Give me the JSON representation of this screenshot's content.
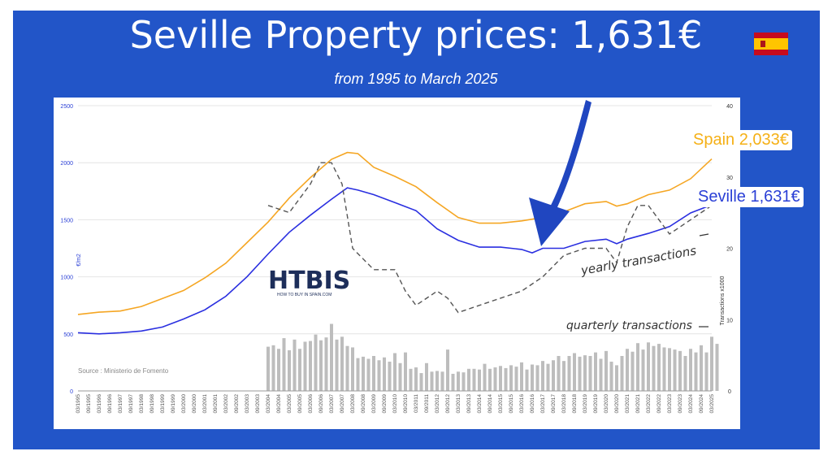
{
  "header": {
    "title": "Seville Property prices: 1,631€",
    "subtitle": "from 1995 to March 2025",
    "flag_colors": {
      "red": "#c60b1e",
      "yellow": "#ffc400"
    }
  },
  "labels": {
    "spain": "Spain 2,033€",
    "seville": "Seville 1,631€"
  },
  "logo": {
    "text": "HTBIS",
    "tagline": "HOW TO BUY IN SPAIN.COM"
  },
  "colors": {
    "frame": "#2255c8",
    "spain": "#f5a623",
    "seville": "#2a2fe0",
    "yearly": "#555555",
    "quarterly": "#bdbdbd",
    "arrow": "#2046c0"
  },
  "chart_data": {
    "type": "line",
    "xlabel": "",
    "ylabel": "€/m2",
    "ylabel_right": "Transactions x1000",
    "ylim": [
      0,
      2500
    ],
    "ylim_right": [
      0,
      40
    ],
    "yticks": [
      0,
      500,
      1000,
      1500,
      2000,
      2500
    ],
    "yticks_right": [
      0,
      10,
      20,
      30,
      40
    ],
    "grid": true,
    "source": "Source : Ministerio de Fomento",
    "x_start": "1995-Q1",
    "x_end": "2025-Q1",
    "x_tick_labels": [
      "03/1995",
      "09/1995",
      "03/1996",
      "09/1996",
      "03/1997",
      "09/1997",
      "03/1998",
      "09/1998",
      "03/1999",
      "09/1999",
      "03/2000",
      "09/2000",
      "03/2001",
      "09/2001",
      "03/2002",
      "09/2002",
      "03/2003",
      "09/2003",
      "03/2004",
      "09/2004",
      "03/2005",
      "09/2005",
      "03/2006",
      "09/2006",
      "03/2007",
      "09/2007",
      "03/2008",
      "09/2008",
      "03/2009",
      "09/2009",
      "03/2010",
      "09/2010",
      "03/2011",
      "09/2011",
      "03/2012",
      "09/2012",
      "03/2013",
      "09/2013",
      "03/2014",
      "09/2014",
      "03/2015",
      "09/2015",
      "03/2016",
      "09/2016",
      "03/2017",
      "09/2017",
      "03/2018",
      "09/2018",
      "03/2019",
      "09/2019",
      "03/2020",
      "09/2020",
      "03/2021",
      "09/2021",
      "03/2022",
      "09/2022",
      "03/2023",
      "09/2023",
      "03/2024",
      "09/2024",
      "03/2025"
    ],
    "series": [
      {
        "name": "Spain 2,033€",
        "axis": "left",
        "style": "line",
        "points": [
          [
            "1995-Q1",
            670
          ],
          [
            "1996-Q1",
            690
          ],
          [
            "1997-Q1",
            700
          ],
          [
            "1998-Q1",
            740
          ],
          [
            "1999-Q1",
            810
          ],
          [
            "2000-Q1",
            880
          ],
          [
            "2001-Q1",
            990
          ],
          [
            "2002-Q1",
            1120
          ],
          [
            "2003-Q1",
            1300
          ],
          [
            "2004-Q1",
            1480
          ],
          [
            "2005-Q1",
            1690
          ],
          [
            "2006-Q1",
            1870
          ],
          [
            "2007-Q1",
            2030
          ],
          [
            "2007-Q4",
            2090
          ],
          [
            "2008-Q2",
            2080
          ],
          [
            "2009-Q1",
            1960
          ],
          [
            "2010-Q1",
            1880
          ],
          [
            "2011-Q1",
            1790
          ],
          [
            "2012-Q1",
            1650
          ],
          [
            "2013-Q1",
            1520
          ],
          [
            "2014-Q1",
            1470
          ],
          [
            "2015-Q1",
            1470
          ],
          [
            "2016-Q1",
            1490
          ],
          [
            "2017-Q1",
            1520
          ],
          [
            "2018-Q1",
            1570
          ],
          [
            "2019-Q1",
            1640
          ],
          [
            "2020-Q1",
            1660
          ],
          [
            "2020-Q3",
            1620
          ],
          [
            "2021-Q1",
            1640
          ],
          [
            "2022-Q1",
            1720
          ],
          [
            "2023-Q1",
            1760
          ],
          [
            "2024-Q1",
            1860
          ],
          [
            "2025-Q1",
            2033
          ]
        ]
      },
      {
        "name": "Seville 1,631€",
        "axis": "left",
        "style": "line",
        "points": [
          [
            "1995-Q1",
            510
          ],
          [
            "1996-Q1",
            500
          ],
          [
            "1997-Q1",
            510
          ],
          [
            "1998-Q1",
            525
          ],
          [
            "1999-Q1",
            560
          ],
          [
            "2000-Q1",
            630
          ],
          [
            "2001-Q1",
            710
          ],
          [
            "2002-Q1",
            830
          ],
          [
            "2003-Q1",
            1000
          ],
          [
            "2004-Q1",
            1200
          ],
          [
            "2005-Q1",
            1390
          ],
          [
            "2006-Q1",
            1540
          ],
          [
            "2007-Q1",
            1680
          ],
          [
            "2007-Q4",
            1780
          ],
          [
            "2008-Q2",
            1760
          ],
          [
            "2009-Q1",
            1720
          ],
          [
            "2010-Q1",
            1650
          ],
          [
            "2011-Q1",
            1580
          ],
          [
            "2012-Q1",
            1420
          ],
          [
            "2013-Q1",
            1320
          ],
          [
            "2014-Q1",
            1260
          ],
          [
            "2015-Q1",
            1260
          ],
          [
            "2016-Q1",
            1240
          ],
          [
            "2016-Q3",
            1210
          ],
          [
            "2017-Q1",
            1250
          ],
          [
            "2018-Q1",
            1250
          ],
          [
            "2019-Q1",
            1310
          ],
          [
            "2020-Q1",
            1330
          ],
          [
            "2020-Q3",
            1290
          ],
          [
            "2021-Q1",
            1330
          ],
          [
            "2022-Q1",
            1380
          ],
          [
            "2023-Q1",
            1440
          ],
          [
            "2024-Q1",
            1560
          ],
          [
            "2025-Q1",
            1631
          ]
        ]
      },
      {
        "name": "yearly transactions",
        "axis": "right",
        "style": "dashed",
        "points": [
          [
            "2004-Q1",
            26
          ],
          [
            "2005-Q1",
            25
          ],
          [
            "2006-Q1",
            29
          ],
          [
            "2006-Q3",
            32
          ],
          [
            "2007-Q1",
            32
          ],
          [
            "2007-Q3",
            29
          ],
          [
            "2008-Q1",
            20
          ],
          [
            "2009-Q1",
            17
          ],
          [
            "2010-Q1",
            17
          ],
          [
            "2010-Q3",
            14
          ],
          [
            "2011-Q1",
            12
          ],
          [
            "2012-Q1",
            14
          ],
          [
            "2012-Q3",
            13
          ],
          [
            "2013-Q1",
            11
          ],
          [
            "2014-Q1",
            12
          ],
          [
            "2015-Q1",
            13
          ],
          [
            "2016-Q1",
            14
          ],
          [
            "2017-Q1",
            16
          ],
          [
            "2018-Q1",
            19
          ],
          [
            "2019-Q1",
            20
          ],
          [
            "2020-Q1",
            20
          ],
          [
            "2020-Q3",
            18
          ],
          [
            "2021-Q1",
            23
          ],
          [
            "2021-Q3",
            26
          ],
          [
            "2022-Q1",
            26
          ],
          [
            "2022-Q3",
            24
          ],
          [
            "2023-Q1",
            22
          ],
          [
            "2023-Q3",
            23
          ],
          [
            "2024-Q1",
            24
          ],
          [
            "2025-Q1",
            26
          ]
        ]
      },
      {
        "name": "quarterly transactions",
        "axis": "right",
        "style": "bar",
        "start": "2004-Q1",
        "values": [
          6.2,
          6.4,
          5.9,
          7.4,
          5.7,
          7.2,
          5.9,
          6.9,
          7.0,
          7.9,
          7.1,
          7.5,
          9.4,
          7.2,
          7.6,
          6.3,
          6.1,
          4.6,
          4.8,
          4.5,
          4.9,
          4.3,
          4.7,
          4.1,
          5.3,
          3.9,
          5.4,
          3.1,
          3.3,
          2.5,
          3.9,
          2.7,
          2.8,
          2.7,
          5.8,
          2.4,
          2.7,
          2.6,
          3.1,
          3.1,
          3.0,
          3.8,
          3.1,
          3.3,
          3.5,
          3.2,
          3.6,
          3.4,
          4.0,
          3.0,
          3.7,
          3.6,
          4.2,
          3.8,
          4.3,
          4.9,
          4.2,
          4.9,
          5.3,
          4.8,
          5.0,
          4.9,
          5.4,
          4.5,
          5.6,
          4.1,
          3.6,
          4.9,
          5.9,
          5.5,
          6.7,
          5.8,
          6.8,
          6.3,
          6.6,
          6.1,
          6.0,
          5.8,
          5.6,
          4.9,
          5.9,
          5.4,
          6.4,
          5.4,
          7.6,
          6.6
        ]
      }
    ],
    "annotations": [
      "yearly transactions",
      "quarterly transactions"
    ]
  }
}
